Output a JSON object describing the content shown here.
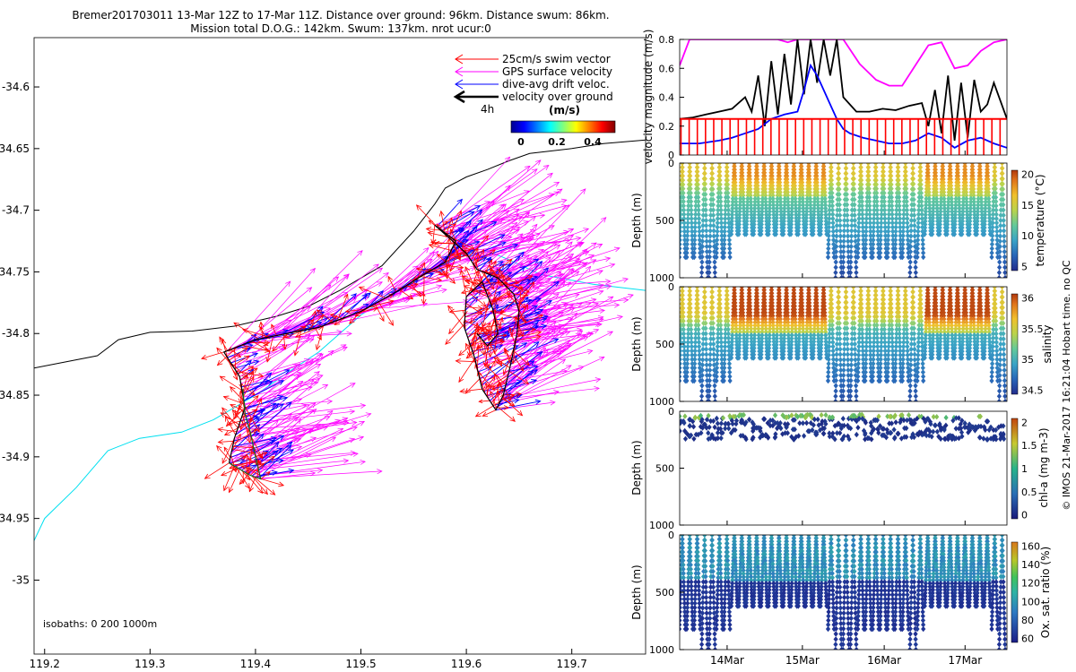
{
  "title_line1": "Bremer201703011 13-Mar 12Z to 17-Mar 11Z. Distance over ground: 96km. Distance swum: 86km.",
  "title_line2": "Mission total D.O.G.: 142km. Swum: 137km. nrot ucur:0",
  "side_note": "© IMOS 21-Mar-2017 16:21:04 Hobart time. no QC",
  "colors": {
    "swim": "#ff0000",
    "gps": "#ff00ff",
    "drift": "#0000ff",
    "ground": "#000000",
    "isobath_200": "#00e0f0",
    "isobath_0": "#000000"
  },
  "chart_data": [
    {
      "type": "scatter",
      "name": "map",
      "xlim": [
        119.19,
        119.77
      ],
      "ylim": [
        -35.06,
        -34.56
      ],
      "x_ticks": [
        "119.2",
        "119.3",
        "119.4",
        "119.5",
        "119.6",
        "119.7"
      ],
      "y_ticks": [
        "-34.6",
        "-34.65",
        "-34.7",
        "-34.75",
        "-34.8",
        "-34.85",
        "-34.9",
        "-34.95",
        "-35"
      ],
      "legend": [
        {
          "label": "25cm/s swim vector",
          "color": "#ff0000"
        },
        {
          "label": "GPS surface velocity",
          "color": "#ff00ff"
        },
        {
          "label": "dive-avg drift veloc.",
          "color": "#0000ff"
        },
        {
          "label": "velocity over ground",
          "color": "#000000"
        }
      ],
      "legend_time": "4h",
      "colorbar": {
        "label": "(m/s)",
        "ticks": [
          "0",
          "0.2",
          "0.4"
        ],
        "range": [
          0,
          0.5
        ]
      },
      "isobaths_label": "isobaths: 0   200  1000m",
      "coastline": [
        [
          119.19,
          -34.828
        ],
        [
          119.22,
          -34.823
        ],
        [
          119.25,
          -34.818
        ],
        [
          119.27,
          -34.805
        ],
        [
          119.3,
          -34.799
        ],
        [
          119.34,
          -34.798
        ],
        [
          119.38,
          -34.794
        ],
        [
          119.42,
          -34.786
        ],
        [
          119.45,
          -34.778
        ],
        [
          119.48,
          -34.765
        ],
        [
          119.52,
          -34.745
        ],
        [
          119.55,
          -34.717
        ],
        [
          119.57,
          -34.695
        ],
        [
          119.58,
          -34.682
        ],
        [
          119.6,
          -34.673
        ],
        [
          119.62,
          -34.667
        ],
        [
          119.64,
          -34.66
        ],
        [
          119.66,
          -34.654
        ],
        [
          119.7,
          -34.65
        ],
        [
          119.73,
          -34.646
        ],
        [
          119.77,
          -34.643
        ]
      ],
      "isobath200": [
        [
          119.19,
          -34.968
        ],
        [
          119.2,
          -34.95
        ],
        [
          119.23,
          -34.925
        ],
        [
          119.26,
          -34.895
        ],
        [
          119.29,
          -34.885
        ],
        [
          119.33,
          -34.88
        ],
        [
          119.36,
          -34.87
        ],
        [
          119.38,
          -34.86
        ],
        [
          119.4,
          -34.85
        ],
        [
          119.43,
          -34.832
        ],
        [
          119.46,
          -34.815
        ],
        [
          119.48,
          -34.8
        ],
        [
          119.5,
          -34.785
        ],
        [
          119.53,
          -34.768
        ],
        [
          119.56,
          -34.752
        ],
        [
          119.58,
          -34.742
        ],
        [
          119.6,
          -34.736
        ],
        [
          119.62,
          -34.733
        ],
        [
          119.64,
          -34.74
        ],
        [
          119.67,
          -34.752
        ],
        [
          119.72,
          -34.76
        ],
        [
          119.77,
          -34.765
        ]
      ],
      "track": [
        [
          119.375,
          -34.905
        ],
        [
          119.38,
          -34.885
        ],
        [
          119.39,
          -34.86
        ],
        [
          119.385,
          -34.835
        ],
        [
          119.37,
          -34.815
        ],
        [
          119.4,
          -34.805
        ],
        [
          119.43,
          -34.8
        ],
        [
          119.46,
          -34.795
        ],
        [
          119.5,
          -34.782
        ],
        [
          119.53,
          -34.768
        ],
        [
          119.56,
          -34.752
        ],
        [
          119.58,
          -34.742
        ],
        [
          119.59,
          -34.725
        ],
        [
          119.57,
          -34.712
        ],
        [
          119.6,
          -34.735
        ],
        [
          119.61,
          -34.748
        ],
        [
          119.63,
          -34.755
        ],
        [
          119.645,
          -34.768
        ],
        [
          119.65,
          -34.782
        ],
        [
          119.648,
          -34.8
        ],
        [
          119.642,
          -34.825
        ],
        [
          119.635,
          -34.85
        ],
        [
          119.628,
          -34.862
        ],
        [
          119.615,
          -34.845
        ],
        [
          119.608,
          -34.82
        ],
        [
          119.598,
          -34.795
        ],
        [
          119.6,
          -34.77
        ],
        [
          119.615,
          -34.758
        ],
        [
          119.625,
          -34.78
        ],
        [
          119.63,
          -34.8
        ],
        [
          119.62,
          -34.81
        ],
        [
          119.61,
          -34.8
        ]
      ],
      "track_tail": [
        [
          119.375,
          -34.905
        ],
        [
          119.385,
          -34.91
        ],
        [
          119.395,
          -34.915
        ],
        [
          119.405,
          -34.918
        ],
        [
          119.4,
          -34.9
        ],
        [
          119.395,
          -34.88
        ],
        [
          119.39,
          -34.865
        ],
        [
          119.388,
          -34.845
        ]
      ]
    },
    {
      "type": "line",
      "name": "velocity",
      "ylabel": "velocity magnitude (m/s)",
      "ylim": [
        0,
        0.8
      ],
      "y_ticks": [
        "0",
        "0.2",
        "0.4",
        "0.6",
        "0.8"
      ],
      "series": [
        {
          "color": "#ff00ff",
          "x": [
            0.0,
            0.03,
            0.05,
            0.1,
            0.2,
            0.25,
            0.3,
            0.33,
            0.36,
            0.4,
            0.46,
            0.5,
            0.55,
            0.6,
            0.64,
            0.68,
            0.72,
            0.76,
            0.8,
            0.84,
            0.88,
            0.92,
            0.96,
            1.0
          ],
          "y": [
            0.62,
            0.8,
            0.8,
            0.8,
            0.8,
            0.8,
            0.8,
            0.78,
            0.8,
            0.8,
            0.8,
            0.8,
            0.63,
            0.52,
            0.48,
            0.48,
            0.62,
            0.76,
            0.78,
            0.6,
            0.62,
            0.72,
            0.78,
            0.8
          ]
        },
        {
          "color": "#000000",
          "x": [
            0.0,
            0.04,
            0.08,
            0.12,
            0.16,
            0.2,
            0.22,
            0.24,
            0.26,
            0.28,
            0.3,
            0.32,
            0.34,
            0.36,
            0.38,
            0.4,
            0.42,
            0.44,
            0.46,
            0.48,
            0.5,
            0.54,
            0.58,
            0.62,
            0.66,
            0.7,
            0.74,
            0.76,
            0.78,
            0.8,
            0.82,
            0.84,
            0.86,
            0.88,
            0.9,
            0.92,
            0.94,
            0.96,
            1.0
          ],
          "y": [
            0.25,
            0.26,
            0.28,
            0.3,
            0.32,
            0.4,
            0.3,
            0.55,
            0.2,
            0.65,
            0.28,
            0.7,
            0.35,
            0.8,
            0.42,
            0.8,
            0.5,
            0.8,
            0.55,
            0.8,
            0.4,
            0.3,
            0.3,
            0.32,
            0.31,
            0.34,
            0.36,
            0.2,
            0.45,
            0.15,
            0.55,
            0.1,
            0.5,
            0.12,
            0.52,
            0.3,
            0.35,
            0.5,
            0.25
          ]
        },
        {
          "color": "#0000ff",
          "x": [
            0.0,
            0.06,
            0.12,
            0.16,
            0.2,
            0.24,
            0.28,
            0.32,
            0.36,
            0.38,
            0.4,
            0.42,
            0.44,
            0.46,
            0.48,
            0.5,
            0.52,
            0.56,
            0.6,
            0.64,
            0.68,
            0.72,
            0.76,
            0.8,
            0.84,
            0.88,
            0.92,
            0.96,
            1.0
          ],
          "y": [
            0.08,
            0.08,
            0.1,
            0.12,
            0.15,
            0.18,
            0.25,
            0.28,
            0.3,
            0.45,
            0.62,
            0.55,
            0.45,
            0.35,
            0.25,
            0.18,
            0.15,
            0.12,
            0.1,
            0.08,
            0.08,
            0.1,
            0.15,
            0.12,
            0.05,
            0.1,
            0.12,
            0.08,
            0.05
          ]
        },
        {
          "color": "#ff0000",
          "x": [
            0.0,
            1.0
          ],
          "y": [
            0.25,
            0.25
          ]
        }
      ]
    },
    {
      "type": "scatter",
      "name": "temperature",
      "ylabel": "Depth (m)",
      "colorbar_label": "temperature (°C)",
      "colorbar_ticks": [
        "5",
        "10",
        "15",
        "20"
      ],
      "y_ticks": [
        "0",
        "500",
        "1000"
      ],
      "clim": [
        3,
        23
      ]
    },
    {
      "type": "scatter",
      "name": "salinity",
      "ylabel": "Depth (m)",
      "colorbar_label": "salinity",
      "colorbar_ticks": [
        "34.5",
        "35",
        "35.5",
        "36"
      ],
      "y_ticks": [
        "0",
        "500",
        "1000"
      ],
      "clim": [
        34.2,
        36.0
      ]
    },
    {
      "type": "scatter",
      "name": "chla",
      "ylabel": "Depth (m)",
      "colorbar_label": "chl-a (mg m-3)",
      "colorbar_ticks": [
        "0",
        "0.5",
        "1",
        "1.5",
        "2"
      ],
      "y_ticks": [
        "0",
        "500",
        "1000"
      ],
      "clim": [
        0,
        2
      ]
    },
    {
      "type": "scatter",
      "name": "oxygen",
      "ylabel": "Depth (m)",
      "colorbar_label": "Ox. sat. ratio (%)",
      "colorbar_ticks": [
        "60",
        "80",
        "100",
        "120",
        "140",
        "160"
      ],
      "y_ticks": [
        "0",
        "500",
        "1000"
      ],
      "x_ticks": [
        "14Mar",
        "15Mar",
        "16Mar",
        "17Mar"
      ],
      "clim": [
        60,
        170
      ]
    }
  ]
}
